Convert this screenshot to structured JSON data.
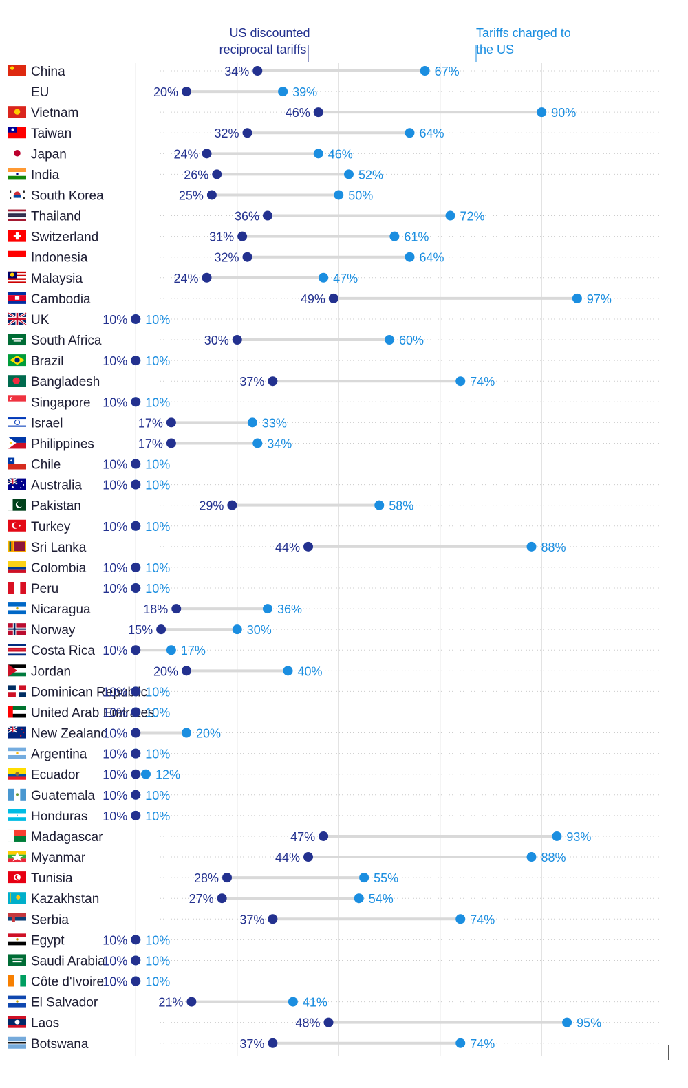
{
  "chart_data": {
    "type": "dumbbell",
    "title": "",
    "xlabel": "",
    "ylabel": "",
    "xlim": [
      0,
      100
    ],
    "legend": {
      "us_label": "US discounted reciprocal tariffs",
      "us_lines": [
        "US discounted",
        "reciprocal tariffs"
      ],
      "tc_label": "Tariffs charged to the US",
      "tc_lines": [
        "Tariffs charged to",
        "the US"
      ],
      "placement": "top"
    },
    "grid": true,
    "gridlines": [
      10,
      30,
      50,
      70,
      90
    ],
    "colors": {
      "us": "#23318f",
      "charged": "#1b8ee0",
      "connector": "#d9d9d9",
      "grid": "#dedede",
      "row_line": "#cccccc"
    },
    "series": [
      {
        "name": "US discounted reciprocal tariffs",
        "key": "us"
      },
      {
        "name": "Tariffs charged to the US",
        "key": "charged"
      }
    ],
    "rows": [
      {
        "country": "China",
        "flag": "china-flag",
        "us": 34,
        "charged": 67
      },
      {
        "country": "EU",
        "flag": "",
        "us": 20,
        "charged": 39
      },
      {
        "country": "Vietnam",
        "flag": "vietnam-flag",
        "us": 46,
        "charged": 90
      },
      {
        "country": "Taiwan",
        "flag": "taiwan-flag",
        "us": 32,
        "charged": 64
      },
      {
        "country": "Japan",
        "flag": "japan-flag",
        "us": 24,
        "charged": 46
      },
      {
        "country": "India",
        "flag": "india-flag",
        "us": 26,
        "charged": 52
      },
      {
        "country": "South Korea",
        "flag": "south-korea-flag",
        "us": 25,
        "charged": 50
      },
      {
        "country": "Thailand",
        "flag": "thailand-flag",
        "us": 36,
        "charged": 72
      },
      {
        "country": "Switzerland",
        "flag": "switzerland-flag",
        "us": 31,
        "charged": 61
      },
      {
        "country": "Indonesia",
        "flag": "indonesia-flag",
        "us": 32,
        "charged": 64
      },
      {
        "country": "Malaysia",
        "flag": "malaysia-flag",
        "us": 24,
        "charged": 47
      },
      {
        "country": "Cambodia",
        "flag": "cambodia-flag",
        "us": 49,
        "charged": 97
      },
      {
        "country": "UK",
        "flag": "uk-flag",
        "us": 10,
        "charged": 10
      },
      {
        "country": "South Africa",
        "flag": "south-africa-flag",
        "us": 30,
        "charged": 60
      },
      {
        "country": "Brazil",
        "flag": "brazil-flag",
        "us": 10,
        "charged": 10
      },
      {
        "country": "Bangladesh",
        "flag": "bangladesh-flag",
        "us": 37,
        "charged": 74
      },
      {
        "country": "Singapore",
        "flag": "singapore-flag",
        "us": 10,
        "charged": 10
      },
      {
        "country": "Israel",
        "flag": "israel-flag",
        "us": 17,
        "charged": 33
      },
      {
        "country": "Philippines",
        "flag": "philippines-flag",
        "us": 17,
        "charged": 34
      },
      {
        "country": "Chile",
        "flag": "chile-flag",
        "us": 10,
        "charged": 10
      },
      {
        "country": "Australia",
        "flag": "australia-flag",
        "us": 10,
        "charged": 10
      },
      {
        "country": "Pakistan",
        "flag": "pakistan-flag",
        "us": 29,
        "charged": 58
      },
      {
        "country": "Turkey",
        "flag": "turkey-flag",
        "us": 10,
        "charged": 10
      },
      {
        "country": "Sri Lanka",
        "flag": "sri-lanka-flag",
        "us": 44,
        "charged": 88
      },
      {
        "country": "Colombia",
        "flag": "colombia-flag",
        "us": 10,
        "charged": 10
      },
      {
        "country": "Peru",
        "flag": "peru-flag",
        "us": 10,
        "charged": 10
      },
      {
        "country": "Nicaragua",
        "flag": "nicaragua-flag",
        "us": 18,
        "charged": 36
      },
      {
        "country": "Norway",
        "flag": "norway-flag",
        "us": 15,
        "charged": 30
      },
      {
        "country": "Costa Rica",
        "flag": "costa-rica-flag",
        "us": 10,
        "charged": 17
      },
      {
        "country": "Jordan",
        "flag": "jordan-flag",
        "us": 20,
        "charged": 40
      },
      {
        "country": "Dominican Republic",
        "flag": "dominican-republic-flag",
        "us": 10,
        "charged": 10
      },
      {
        "country": "United Arab Emirates",
        "flag": "uae-flag",
        "us": 10,
        "charged": 10
      },
      {
        "country": "New Zealand",
        "flag": "new-zealand-flag",
        "us": 10,
        "charged": 20
      },
      {
        "country": "Argentina",
        "flag": "argentina-flag",
        "us": 10,
        "charged": 10
      },
      {
        "country": "Ecuador",
        "flag": "ecuador-flag",
        "us": 10,
        "charged": 12
      },
      {
        "country": "Guatemala",
        "flag": "guatemala-flag",
        "us": 10,
        "charged": 10
      },
      {
        "country": "Honduras",
        "flag": "honduras-flag",
        "us": 10,
        "charged": 10
      },
      {
        "country": "Madagascar",
        "flag": "madagascar-flag",
        "us": 47,
        "charged": 93
      },
      {
        "country": "Myanmar",
        "flag": "myanmar-flag",
        "us": 44,
        "charged": 88
      },
      {
        "country": "Tunisia",
        "flag": "tunisia-flag",
        "us": 28,
        "charged": 55
      },
      {
        "country": "Kazakhstan",
        "flag": "kazakhstan-flag",
        "us": 27,
        "charged": 54
      },
      {
        "country": "Serbia",
        "flag": "serbia-flag",
        "us": 37,
        "charged": 74
      },
      {
        "country": "Egypt",
        "flag": "egypt-flag",
        "us": 10,
        "charged": 10
      },
      {
        "country": "Saudi Arabia",
        "flag": "saudi-arabia-flag",
        "us": 10,
        "charged": 10
      },
      {
        "country": "Côte d'Ivoire",
        "flag": "cote-divoire-flag",
        "us": 10,
        "charged": 10
      },
      {
        "country": "El Salvador",
        "flag": "el-salvador-flag",
        "us": 21,
        "charged": 41
      },
      {
        "country": "Laos",
        "flag": "laos-flag",
        "us": 48,
        "charged": 95
      },
      {
        "country": "Botswana",
        "flag": "botswana-flag",
        "us": 37,
        "charged": 74
      }
    ]
  }
}
